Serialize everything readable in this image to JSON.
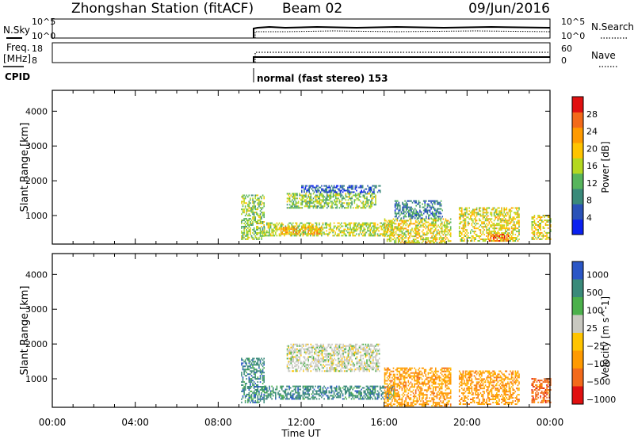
{
  "header": {
    "station": "Zhongshan Station (fitACF)",
    "beam": "Beam 02",
    "date": "09/Jun/2016"
  },
  "small_panels": {
    "nsky_label": "N.Sky",
    "nsky_ticks": [
      "10^5",
      "10^0"
    ],
    "nsearch_label": "N.Search",
    "nsearch_ticks": [
      "10^5",
      "10^0"
    ],
    "freq_label": "Freq.",
    "freq_unit": "[MHz]",
    "freq_ticks": [
      "18",
      "8"
    ],
    "nave_label": "Nave",
    "nave_ticks": [
      "60",
      "0"
    ],
    "cpid_label": "CPID",
    "cpid_text": "normal (fast stereo) 153"
  },
  "colors": {
    "power": [
      "#0a20f0",
      "#2a52b8",
      "#3a8a7a",
      "#57b55c",
      "#b4d820",
      "#ffc400",
      "#ff9a00",
      "#f36a1a",
      "#e01010"
    ],
    "velocity": [
      "#2a56c6",
      "#3a8a7a",
      "#4bb04b",
      "#c8c8c0",
      "#ffc400",
      "#ff9a00",
      "#f36a1a",
      "#e01010"
    ]
  },
  "chart_data": [
    {
      "type": "heatmap",
      "panel": "power",
      "ylabel": "Slant Range [km]",
      "yticks": [
        "1000",
        "2000",
        "3000",
        "4000"
      ],
      "ylim": [
        180,
        4600
      ],
      "xlim": [
        0,
        24
      ],
      "colorbar_label": "Power [dB]",
      "colorbar_ticks": [
        "28",
        "24",
        "20",
        "16",
        "12",
        "8",
        "4"
      ],
      "colorbar_range": [
        0,
        32
      ],
      "echo_regions": [
        {
          "t": [
            9.1,
            10.2
          ],
          "r": [
            300,
            1600
          ],
          "v": 14
        },
        {
          "t": [
            10.2,
            16.5
          ],
          "r": [
            400,
            800
          ],
          "v": 16
        },
        {
          "t": [
            11.3,
            15.6
          ],
          "r": [
            1200,
            1650
          ],
          "v": 14
        },
        {
          "t": [
            12.0,
            15.8
          ],
          "r": [
            1650,
            1850
          ],
          "v": 6
        },
        {
          "t": [
            11.0,
            13.0
          ],
          "r": [
            450,
            650
          ],
          "v": 22
        },
        {
          "t": [
            16.0,
            19.2
          ],
          "r": [
            200,
            900
          ],
          "v": 18
        },
        {
          "t": [
            16.5,
            18.8
          ],
          "r": [
            900,
            1400
          ],
          "v": 8
        },
        {
          "t": [
            19.6,
            22.5
          ],
          "r": [
            250,
            1200
          ],
          "v": 18
        },
        {
          "t": [
            21.0,
            22.0
          ],
          "r": [
            250,
            450
          ],
          "v": 26
        },
        {
          "t": [
            23.1,
            24.0
          ],
          "r": [
            300,
            1000
          ],
          "v": 18
        }
      ]
    },
    {
      "type": "heatmap",
      "panel": "velocity",
      "ylabel": "Slant Range [km]",
      "yticks": [
        "1000",
        "2000",
        "3000",
        "4000"
      ],
      "ylim": [
        180,
        4600
      ],
      "xlim": [
        0,
        24
      ],
      "xticks": [
        "00:00",
        "04:00",
        "08:00",
        "12:00",
        "16:00",
        "20:00",
        "00:00"
      ],
      "xlabel": "Time UT",
      "colorbar_label": "Velocity [m s^-1]",
      "colorbar_ticks": [
        "1000",
        "500",
        "100",
        "25",
        "−25",
        "−100",
        "−500",
        "−1000"
      ],
      "echo_regions": [
        {
          "t": [
            9.1,
            10.2
          ],
          "r": [
            300,
            1600
          ],
          "v": 1
        },
        {
          "t": [
            10.2,
            16.5
          ],
          "r": [
            400,
            800
          ],
          "v": 1
        },
        {
          "t": [
            11.3,
            15.8
          ],
          "r": [
            1200,
            2000
          ],
          "v": 3
        },
        {
          "t": [
            16.0,
            19.2
          ],
          "r": [
            200,
            1300
          ],
          "v": 5
        },
        {
          "t": [
            19.6,
            22.5
          ],
          "r": [
            250,
            1200
          ],
          "v": 5
        },
        {
          "t": [
            23.1,
            24.0
          ],
          "r": [
            300,
            1000
          ],
          "v": 6
        }
      ]
    }
  ]
}
